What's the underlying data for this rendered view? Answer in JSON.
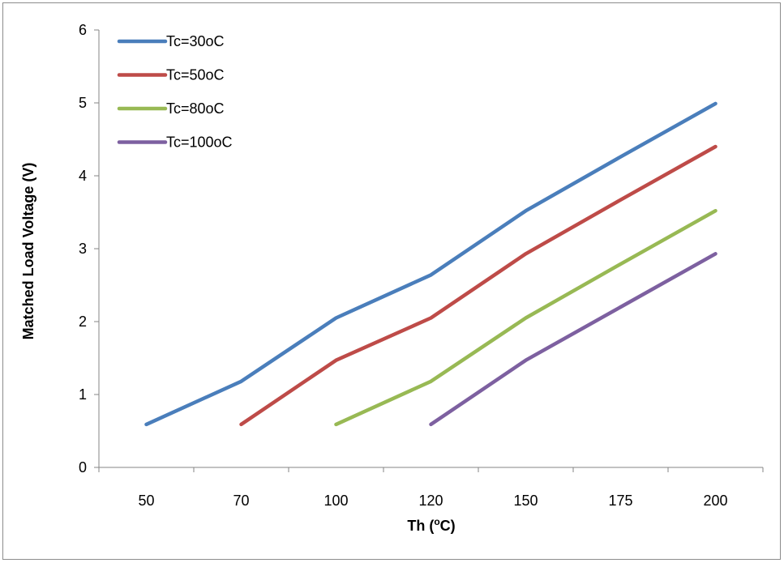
{
  "chart_data": {
    "type": "line",
    "title": "",
    "xlabel_main": "Th (",
    "xlabel_sup": "o",
    "xlabel_end": "C)",
    "ylabel": "Matched Load Voltage (V)",
    "categories": [
      "50",
      "70",
      "100",
      "120",
      "150",
      "175",
      "200"
    ],
    "ylim": [
      0,
      6
    ],
    "yticks": [
      "0",
      "1",
      "2",
      "3",
      "4",
      "5",
      "6"
    ],
    "grid": false,
    "legend_position": "top-left",
    "series": [
      {
        "name": "Tc=30oC",
        "color": "#4a7ebb",
        "values": [
          0.59,
          1.18,
          2.05,
          2.64,
          3.52,
          4.26,
          4.99
        ]
      },
      {
        "name": "Tc=50oC",
        "color": "#be4b48",
        "values": [
          null,
          0.59,
          1.47,
          2.05,
          2.93,
          3.67,
          4.4
        ]
      },
      {
        "name": "Tc=80oC",
        "color": "#98b954",
        "values": [
          null,
          null,
          0.59,
          1.18,
          2.05,
          2.79,
          3.52
        ]
      },
      {
        "name": "Tc=100oC",
        "color": "#7d60a0",
        "values": [
          null,
          null,
          null,
          0.59,
          1.47,
          2.2,
          2.93
        ]
      }
    ]
  }
}
